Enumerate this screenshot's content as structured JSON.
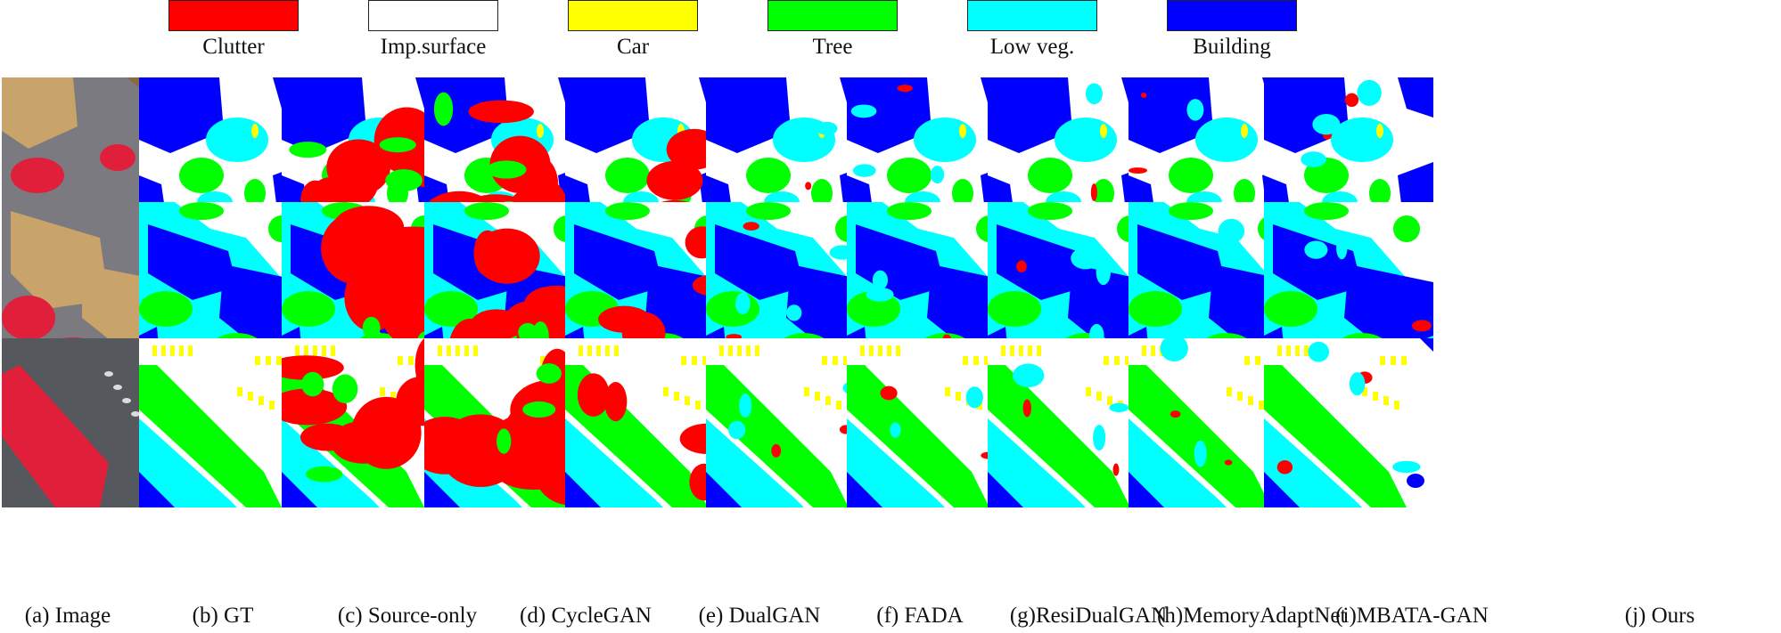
{
  "legend": [
    {
      "label": "Clutter",
      "color": "#ff0000"
    },
    {
      "label": "Imp.surface",
      "color": "#ffffff"
    },
    {
      "label": "Car",
      "color": "#ffff00"
    },
    {
      "label": "Tree",
      "color": "#00ff00"
    },
    {
      "label": "Low veg.",
      "color": "#00ffff"
    },
    {
      "label": "Building",
      "color": "#0000ff"
    }
  ],
  "columns": [
    {
      "caption": "(a) Image"
    },
    {
      "caption": "(b) GT"
    },
    {
      "caption": "(c) Source-only"
    },
    {
      "caption": "(d) CycleGAN"
    },
    {
      "caption": "(e) DualGAN"
    },
    {
      "caption": "(f) FADA"
    },
    {
      "caption": "(g)ResiDualGAN"
    },
    {
      "caption": "(h)MemoryAdaptNet"
    },
    {
      "caption": "(i)MBATA-GAN"
    },
    {
      "caption": "(j) Ours"
    }
  ],
  "colors": {
    "clutter": "#ff0000",
    "imp_surface": "#ffffff",
    "car": "#ffff00",
    "tree": "#00ff00",
    "low_veg": "#00ffff",
    "building": "#0000ff",
    "photo_roof": "#c8a36a",
    "photo_veg": "#e0203a",
    "photo_ground": "#7a7a80"
  }
}
